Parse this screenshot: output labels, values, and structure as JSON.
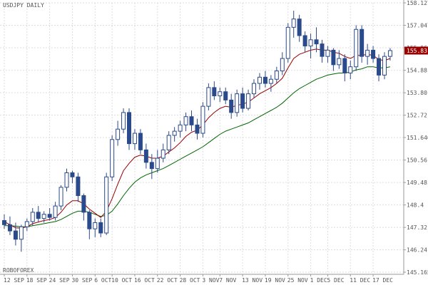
{
  "chart_data": {
    "type": "candlestick",
    "title": "USDJPY DAILY",
    "watermark": "ROBOFOREX",
    "ylim": [
      145.165,
      158.127
    ],
    "y_ticks": [
      158.127,
      157.047,
      155.966,
      154.88,
      153.8,
      152.72,
      151.646,
      150.56,
      149.48,
      148.4,
      147.32,
      146.24,
      145.165
    ],
    "x_ticks": [
      "12 SEP",
      "18 SEP",
      "24 SEP",
      "30 SEP",
      "6 OCT",
      "10 OCT",
      "16 OCT",
      "22 OCT",
      "28 OCT",
      "3 NOV",
      "7 NOV",
      "13 NOV",
      "19 NOV",
      "25 NOV",
      "1 DEC",
      "5 DEC",
      "11 DEC",
      "17 DEC"
    ],
    "last_price": "155.83",
    "grid": true,
    "colors": {
      "bull_body": "#ffffff",
      "bear_body": "#2b4a8b",
      "candle_outline": "#2b4a8b",
      "fast_ma": "#990000",
      "slow_ma": "#006600",
      "grid": "#dddddd",
      "price_tag": "#990000"
    },
    "series": [
      {
        "name": "",
        "type": "candlestick",
        "ohlc": [
          [
            147.65,
            147.95,
            147.25,
            147.45
          ],
          [
            147.45,
            147.85,
            146.95,
            147.15
          ],
          [
            147.15,
            147.55,
            146.45,
            146.75
          ],
          [
            146.75,
            147.45,
            146.15,
            147.35
          ],
          [
            147.35,
            147.75,
            147.15,
            147.6
          ],
          [
            147.6,
            148.25,
            147.4,
            148.05
          ],
          [
            148.05,
            148.35,
            147.55,
            147.75
          ],
          [
            147.75,
            148.1,
            147.55,
            147.95
          ],
          [
            147.95,
            148.25,
            147.65,
            147.8
          ],
          [
            147.8,
            148.55,
            147.65,
            148.35
          ],
          [
            148.35,
            149.35,
            148.15,
            149.25
          ],
          [
            149.25,
            150.15,
            149.05,
            149.95
          ],
          [
            149.95,
            150.05,
            149.45,
            149.75
          ],
          [
            149.75,
            149.95,
            148.55,
            148.85
          ],
          [
            148.85,
            148.95,
            147.65,
            148.05
          ],
          [
            148.05,
            148.15,
            146.75,
            147.25
          ],
          [
            147.25,
            147.75,
            146.85,
            147.55
          ],
          [
            147.55,
            147.75,
            146.85,
            147.05
          ],
          [
            147.05,
            149.95,
            146.95,
            149.75
          ],
          [
            149.75,
            151.75,
            149.55,
            151.55
          ],
          [
            151.55,
            152.45,
            151.25,
            152.05
          ],
          [
            152.05,
            153.05,
            151.85,
            152.85
          ],
          [
            152.85,
            153.05,
            151.05,
            151.35
          ],
          [
            151.35,
            152.05,
            151.05,
            151.85
          ],
          [
            151.85,
            152.05,
            150.85,
            151.05
          ],
          [
            151.05,
            151.35,
            150.15,
            150.45
          ],
          [
            150.45,
            150.85,
            149.65,
            150.15
          ],
          [
            150.15,
            151.05,
            149.95,
            150.65
          ],
          [
            150.65,
            151.35,
            150.45,
            151.05
          ],
          [
            151.05,
            151.95,
            150.85,
            151.75
          ],
          [
            151.75,
            152.15,
            151.45,
            151.95
          ],
          [
            151.95,
            152.45,
            151.65,
            152.25
          ],
          [
            152.25,
            152.85,
            151.95,
            152.65
          ],
          [
            152.65,
            152.95,
            151.95,
            152.25
          ],
          [
            152.25,
            152.55,
            151.55,
            151.85
          ],
          [
            151.85,
            153.35,
            151.65,
            153.15
          ],
          [
            153.15,
            154.25,
            152.95,
            154.05
          ],
          [
            154.05,
            154.35,
            153.45,
            153.65
          ],
          [
            153.65,
            154.05,
            153.35,
            153.85
          ],
          [
            153.85,
            154.05,
            153.25,
            153.45
          ],
          [
            153.45,
            153.75,
            152.55,
            152.85
          ],
          [
            152.85,
            153.95,
            152.65,
            153.75
          ],
          [
            153.75,
            154.05,
            152.85,
            153.05
          ],
          [
            153.05,
            153.95,
            152.95,
            153.75
          ],
          [
            153.75,
            154.45,
            153.55,
            154.25
          ],
          [
            154.25,
            154.75,
            153.95,
            154.55
          ],
          [
            154.55,
            154.85,
            154.05,
            154.25
          ],
          [
            154.25,
            154.65,
            153.85,
            154.45
          ],
          [
            154.45,
            155.05,
            154.25,
            154.85
          ],
          [
            154.85,
            155.75,
            154.65,
            155.45
          ],
          [
            155.45,
            157.15,
            155.25,
            156.95
          ],
          [
            156.95,
            157.75,
            156.45,
            157.35
          ],
          [
            157.35,
            157.55,
            156.25,
            156.55
          ],
          [
            156.55,
            156.75,
            155.75,
            156.05
          ],
          [
            156.05,
            156.65,
            155.45,
            156.35
          ],
          [
            156.35,
            156.95,
            155.75,
            156.15
          ],
          [
            156.15,
            156.35,
            155.25,
            155.55
          ],
          [
            155.55,
            156.05,
            155.25,
            155.85
          ],
          [
            155.85,
            155.95,
            154.85,
            155.15
          ],
          [
            155.15,
            155.85,
            154.95,
            155.45
          ],
          [
            155.45,
            155.65,
            154.35,
            154.75
          ],
          [
            154.75,
            155.35,
            154.45,
            155.05
          ],
          [
            155.05,
            157.05,
            154.85,
            156.85
          ],
          [
            156.85,
            157.05,
            155.25,
            155.55
          ],
          [
            155.55,
            156.15,
            155.15,
            155.85
          ],
          [
            155.85,
            156.05,
            155.25,
            155.45
          ],
          [
            155.45,
            155.65,
            154.35,
            154.65
          ],
          [
            154.65,
            155.75,
            154.45,
            155.55
          ],
          [
            155.55,
            155.95,
            155.35,
            155.83
          ]
        ]
      },
      {
        "name": "",
        "type": "line",
        "role": "fast_ma",
        "values": [
          147.6,
          147.45,
          147.3,
          147.28,
          147.35,
          147.5,
          147.58,
          147.65,
          147.7,
          147.8,
          148.05,
          148.4,
          148.6,
          148.6,
          148.45,
          148.2,
          148.0,
          147.8,
          148.1,
          148.7,
          149.4,
          150.05,
          150.4,
          150.7,
          150.8,
          150.75,
          150.65,
          150.65,
          150.75,
          150.95,
          151.15,
          151.4,
          151.7,
          151.9,
          152.0,
          152.25,
          152.6,
          152.85,
          153.05,
          153.15,
          153.1,
          153.2,
          153.25,
          153.35,
          153.55,
          153.75,
          153.9,
          154.05,
          154.25,
          154.5,
          155.0,
          155.45,
          155.65,
          155.75,
          155.85,
          155.9,
          155.85,
          155.85,
          155.75,
          155.7,
          155.55,
          155.45,
          155.6,
          155.6,
          155.65,
          155.6,
          155.4,
          155.35,
          155.45
        ]
      },
      {
        "name": "",
        "type": "line",
        "role": "slow_ma",
        "values": [
          147.4,
          147.4,
          147.38,
          147.35,
          147.35,
          147.4,
          147.45,
          147.5,
          147.55,
          147.6,
          147.7,
          147.85,
          148.0,
          148.1,
          148.1,
          148.05,
          147.95,
          147.85,
          147.9,
          148.1,
          148.45,
          148.85,
          149.2,
          149.5,
          149.7,
          149.85,
          149.95,
          150.05,
          150.15,
          150.3,
          150.45,
          150.6,
          150.75,
          150.9,
          151.05,
          151.2,
          151.4,
          151.6,
          151.8,
          151.95,
          152.05,
          152.15,
          152.25,
          152.35,
          152.5,
          152.65,
          152.8,
          152.95,
          153.1,
          153.3,
          153.55,
          153.8,
          154.0,
          154.15,
          154.3,
          154.45,
          154.55,
          154.65,
          154.7,
          154.75,
          154.75,
          154.8,
          154.9,
          154.95,
          155.05,
          155.05,
          155.0,
          155.0,
          155.05
        ]
      }
    ]
  }
}
